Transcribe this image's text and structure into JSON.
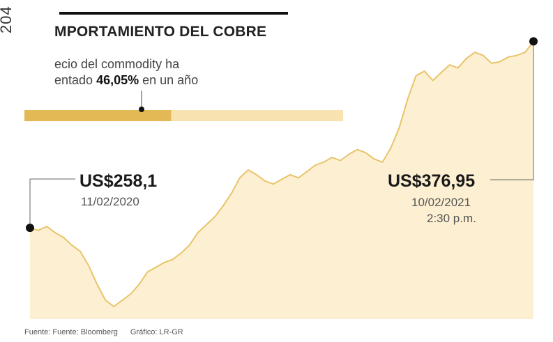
{
  "side_number": "204",
  "title": "MPORTAMIENTO DEL COBRE",
  "subtitle": {
    "line1": "ecio del commodity ha",
    "line2_prefix": "entado ",
    "line2_value": "46,05%",
    "line2_suffix": " en un año"
  },
  "progress_bar": {
    "fraction": 0.4605,
    "fill_color": "#e3b955",
    "track_color": "#f8e3b0"
  },
  "start_callout": {
    "value": "US$258,1",
    "date": "11/02/2020"
  },
  "end_callout": {
    "value": "US$376,95",
    "date": "10/02/2021",
    "time": "2:30 p.m."
  },
  "footer": {
    "source": "Fuente: Fuente: Bloomberg",
    "credit": "Gráfico: LR-GR"
  },
  "colors": {
    "line": "#e8c46a",
    "area": "#fdefd1",
    "marker": "#111111",
    "leader": "#666666"
  },
  "chart_data": {
    "type": "area",
    "title": "",
    "xlabel": "",
    "ylabel": "",
    "grid": false,
    "ylim": [
      200,
      390
    ],
    "x_range": [
      "11/02/2020",
      "10/02/2021"
    ],
    "series": [
      {
        "values": [
          258.1,
          256.5,
          259.0,
          255.0,
          252.0,
          247.0,
          243.0,
          234.0,
          222.0,
          212.0,
          208.0,
          212.0,
          216.0,
          222.0,
          230.0,
          233.0,
          236.0,
          238.0,
          242.0,
          247.0,
          255.0,
          260.0,
          265.0,
          272.0,
          280.0,
          290.0,
          295.0,
          292.0,
          288.0,
          286.0,
          289.0,
          292.0,
          290.0,
          294.0,
          298.0,
          300.0,
          303.0,
          301.0,
          305.0,
          308.0,
          306.0,
          302.0,
          300.0,
          309.0,
          322.0,
          340.0,
          355.0,
          358.0,
          352.0,
          357.0,
          362.0,
          360.0,
          366.0,
          370.0,
          368.0,
          363.0,
          364.0,
          367.0,
          368.0,
          370.0,
          376.95
        ]
      }
    ]
  }
}
